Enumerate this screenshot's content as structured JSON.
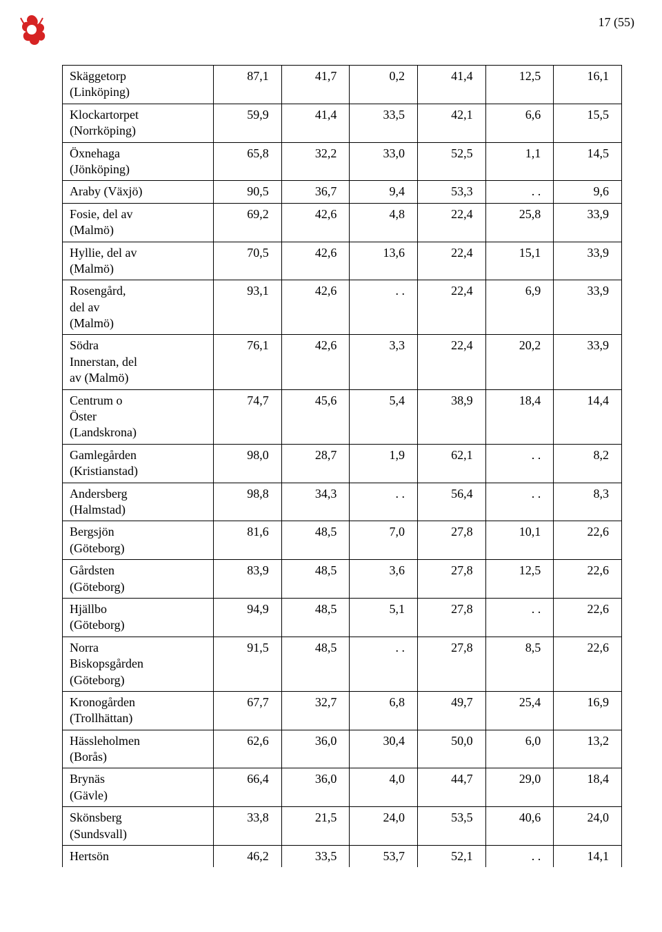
{
  "page_label": "17 (55)",
  "logo": {
    "name": "rose-logo",
    "petal_color": "#d62323",
    "accent_color": "#d62323"
  },
  "table": {
    "rows": [
      {
        "label_lines": [
          "Skäggetorp",
          "(Linköping)"
        ],
        "values": [
          "87,1",
          "41,7",
          "0,2",
          "41,4",
          "12,5",
          "16,1"
        ]
      },
      {
        "label_lines": [
          "Klockartorpet",
          "(Norrköping)"
        ],
        "values": [
          "59,9",
          "41,4",
          "33,5",
          "42,1",
          "6,6",
          "15,5"
        ]
      },
      {
        "label_lines": [
          "Öxnehaga",
          "(Jönköping)"
        ],
        "values": [
          "65,8",
          "32,2",
          "33,0",
          "52,5",
          "1,1",
          "14,5"
        ]
      },
      {
        "label_lines": [
          "Araby (Växjö)"
        ],
        "values": [
          "90,5",
          "36,7",
          "9,4",
          "53,3",
          ". .",
          "9,6"
        ]
      },
      {
        "label_lines": [
          "Fosie, del av",
          "(Malmö)"
        ],
        "values": [
          "69,2",
          "42,6",
          "4,8",
          "22,4",
          "25,8",
          "33,9"
        ]
      },
      {
        "label_lines": [
          "Hyllie, del av",
          "(Malmö)"
        ],
        "values": [
          "70,5",
          "42,6",
          "13,6",
          "22,4",
          "15,1",
          "33,9"
        ]
      },
      {
        "label_lines": [
          "Rosengård,",
          "del av",
          "(Malmö)"
        ],
        "values": [
          "93,1",
          "42,6",
          ". .",
          "22,4",
          "6,9",
          "33,9"
        ]
      },
      {
        "label_lines": [
          "Södra",
          "Innerstan, del",
          "av (Malmö)"
        ],
        "values": [
          "76,1",
          "42,6",
          "3,3",
          "22,4",
          "20,2",
          "33,9"
        ]
      },
      {
        "label_lines": [
          "Centrum o",
          "Öster",
          "(Landskrona)"
        ],
        "values": [
          "74,7",
          "45,6",
          "5,4",
          "38,9",
          "18,4",
          "14,4"
        ]
      },
      {
        "label_lines": [
          "Gamlegården",
          "(Kristianstad)"
        ],
        "values": [
          "98,0",
          "28,7",
          "1,9",
          "62,1",
          ". .",
          "8,2"
        ]
      },
      {
        "label_lines": [
          "Andersberg",
          "(Halmstad)"
        ],
        "values": [
          "98,8",
          "34,3",
          ". .",
          "56,4",
          ". .",
          "8,3"
        ]
      },
      {
        "label_lines": [
          "Bergsjön",
          "(Göteborg)"
        ],
        "values": [
          "81,6",
          "48,5",
          "7,0",
          "27,8",
          "10,1",
          "22,6"
        ]
      },
      {
        "label_lines": [
          "Gårdsten",
          "(Göteborg)"
        ],
        "values": [
          "83,9",
          "48,5",
          "3,6",
          "27,8",
          "12,5",
          "22,6"
        ]
      },
      {
        "label_lines": [
          "Hjällbo",
          "(Göteborg)"
        ],
        "values": [
          "94,9",
          "48,5",
          "5,1",
          "27,8",
          ". .",
          "22,6"
        ]
      },
      {
        "label_lines": [
          "Norra",
          "Biskopsgården",
          "(Göteborg)"
        ],
        "values": [
          "91,5",
          "48,5",
          ". .",
          "27,8",
          "8,5",
          "22,6"
        ]
      },
      {
        "label_lines": [
          "Kronogården",
          "(Trollhättan)"
        ],
        "values": [
          "67,7",
          "32,7",
          "6,8",
          "49,7",
          "25,4",
          "16,9"
        ]
      },
      {
        "label_lines": [
          "Hässleholmen",
          "(Borås)"
        ],
        "values": [
          "62,6",
          "36,0",
          "30,4",
          "50,0",
          "6,0",
          "13,2"
        ]
      },
      {
        "label_lines": [
          "Brynäs",
          "(Gävle)"
        ],
        "values": [
          "66,4",
          "36,0",
          "4,0",
          "44,7",
          "29,0",
          "18,4"
        ]
      },
      {
        "label_lines": [
          "Skönsberg",
          "(Sundsvall)"
        ],
        "values": [
          "33,8",
          "21,5",
          "24,0",
          "53,5",
          "40,6",
          "24,0"
        ]
      },
      {
        "label_lines": [
          "Hertsön"
        ],
        "values": [
          "46,2",
          "33,5",
          "53,7",
          "52,1",
          ". .",
          "14,1"
        ],
        "bottomless": true
      }
    ]
  }
}
